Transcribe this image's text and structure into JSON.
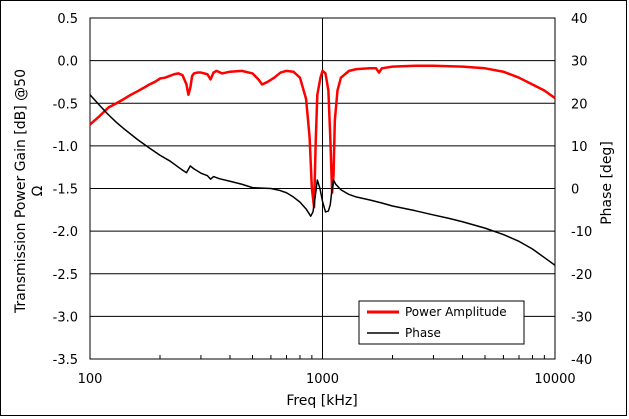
{
  "chart_data": {
    "type": "line",
    "title": "",
    "xlabel": "Freq [kHz]",
    "ylabel": "Transmission Power Gain [dB] @50 Ω",
    "ylabel_lines": [
      "Transmission Power Gain [dB] @50",
      "Ω"
    ],
    "y2label": "Phase [deg]",
    "xscale": "log",
    "xlim": [
      100,
      10000
    ],
    "ylim": [
      -3.5,
      0.5
    ],
    "y2lim": [
      -40,
      40
    ],
    "grid": true,
    "legend_position": "bottom-right",
    "x_ticks": [
      "100",
      "1000",
      "10000"
    ],
    "y_ticks": [
      "0.5",
      "0.0",
      "-0.5",
      "-1.0",
      "-1.5",
      "-2.0",
      "-2.5",
      "-3.0",
      "-3.5"
    ],
    "y2_ticks": [
      "40",
      "30",
      "20",
      "10",
      "0",
      "-10",
      "-20",
      "-30",
      "-40"
    ],
    "series": [
      {
        "name": "Power Amplitude",
        "axis": "left",
        "color": "#ff0000",
        "points": [
          [
            100,
            -0.75
          ],
          [
            110,
            -0.65
          ],
          [
            120,
            -0.55
          ],
          [
            130,
            -0.5
          ],
          [
            140,
            -0.45
          ],
          [
            150,
            -0.4
          ],
          [
            160,
            -0.36
          ],
          [
            170,
            -0.32
          ],
          [
            180,
            -0.28
          ],
          [
            190,
            -0.25
          ],
          [
            200,
            -0.21
          ],
          [
            210,
            -0.2
          ],
          [
            220,
            -0.18
          ],
          [
            230,
            -0.16
          ],
          [
            240,
            -0.15
          ],
          [
            250,
            -0.17
          ],
          [
            260,
            -0.28
          ],
          [
            265,
            -0.4
          ],
          [
            270,
            -0.32
          ],
          [
            275,
            -0.18
          ],
          [
            280,
            -0.15
          ],
          [
            290,
            -0.14
          ],
          [
            300,
            -0.14
          ],
          [
            320,
            -0.16
          ],
          [
            330,
            -0.22
          ],
          [
            340,
            -0.14
          ],
          [
            350,
            -0.12
          ],
          [
            370,
            -0.15
          ],
          [
            400,
            -0.13
          ],
          [
            450,
            -0.12
          ],
          [
            500,
            -0.15
          ],
          [
            530,
            -0.22
          ],
          [
            550,
            -0.28
          ],
          [
            580,
            -0.25
          ],
          [
            620,
            -0.2
          ],
          [
            660,
            -0.14
          ],
          [
            700,
            -0.12
          ],
          [
            750,
            -0.13
          ],
          [
            800,
            -0.2
          ],
          [
            850,
            -0.45
          ],
          [
            880,
            -0.9
          ],
          [
            900,
            -1.5
          ],
          [
            920,
            -1.72
          ],
          [
            935,
            -0.95
          ],
          [
            950,
            -0.4
          ],
          [
            980,
            -0.2
          ],
          [
            1000,
            -0.12
          ],
          [
            1030,
            -0.15
          ],
          [
            1060,
            -0.35
          ],
          [
            1080,
            -0.9
          ],
          [
            1100,
            -1.55
          ],
          [
            1115,
            -1.35
          ],
          [
            1130,
            -0.7
          ],
          [
            1160,
            -0.35
          ],
          [
            1200,
            -0.2
          ],
          [
            1300,
            -0.12
          ],
          [
            1400,
            -0.1
          ],
          [
            1600,
            -0.09
          ],
          [
            1700,
            -0.09
          ],
          [
            1750,
            -0.14
          ],
          [
            1800,
            -0.09
          ],
          [
            2000,
            -0.07
          ],
          [
            2500,
            -0.06
          ],
          [
            3000,
            -0.06
          ],
          [
            4000,
            -0.07
          ],
          [
            5000,
            -0.09
          ],
          [
            6000,
            -0.13
          ],
          [
            7000,
            -0.2
          ],
          [
            8000,
            -0.28
          ],
          [
            9000,
            -0.35
          ],
          [
            10000,
            -0.44
          ]
        ]
      },
      {
        "name": "Phase",
        "axis": "right",
        "color": "#000000",
        "points": [
          [
            100,
            22
          ],
          [
            110,
            19.5
          ],
          [
            120,
            17.3
          ],
          [
            130,
            15.5
          ],
          [
            140,
            14
          ],
          [
            160,
            11.5
          ],
          [
            180,
            9.5
          ],
          [
            200,
            7.8
          ],
          [
            220,
            6.5
          ],
          [
            240,
            5
          ],
          [
            250,
            4.3
          ],
          [
            260,
            3.7
          ],
          [
            265,
            4.5
          ],
          [
            270,
            5.3
          ],
          [
            280,
            4.6
          ],
          [
            300,
            3.6
          ],
          [
            320,
            3
          ],
          [
            330,
            2.2
          ],
          [
            340,
            2.8
          ],
          [
            360,
            2.3
          ],
          [
            400,
            1.7
          ],
          [
            450,
            1
          ],
          [
            500,
            0.2
          ],
          [
            550,
            0.1
          ],
          [
            600,
            0
          ],
          [
            650,
            -0.4
          ],
          [
            700,
            -1
          ],
          [
            750,
            -2
          ],
          [
            800,
            -3.2
          ],
          [
            850,
            -4.8
          ],
          [
            890,
            -6.5
          ],
          [
            910,
            -5.5
          ],
          [
            930,
            -2
          ],
          [
            950,
            2
          ],
          [
            975,
            0
          ],
          [
            1000,
            -3
          ],
          [
            1030,
            -5.5
          ],
          [
            1060,
            -5.3
          ],
          [
            1080,
            -3.8
          ],
          [
            1100,
            0
          ],
          [
            1115,
            2
          ],
          [
            1140,
            1
          ],
          [
            1200,
            -0.3
          ],
          [
            1300,
            -1.4
          ],
          [
            1400,
            -2
          ],
          [
            1600,
            -2.7
          ],
          [
            1800,
            -3.4
          ],
          [
            2000,
            -4.1
          ],
          [
            2500,
            -5.2
          ],
          [
            3000,
            -6.2
          ],
          [
            3500,
            -7
          ],
          [
            4000,
            -7.8
          ],
          [
            5000,
            -9.3
          ],
          [
            6000,
            -10.8
          ],
          [
            7000,
            -12.4
          ],
          [
            8000,
            -14.2
          ],
          [
            9000,
            -16.2
          ],
          [
            10000,
            -18
          ]
        ]
      }
    ]
  }
}
